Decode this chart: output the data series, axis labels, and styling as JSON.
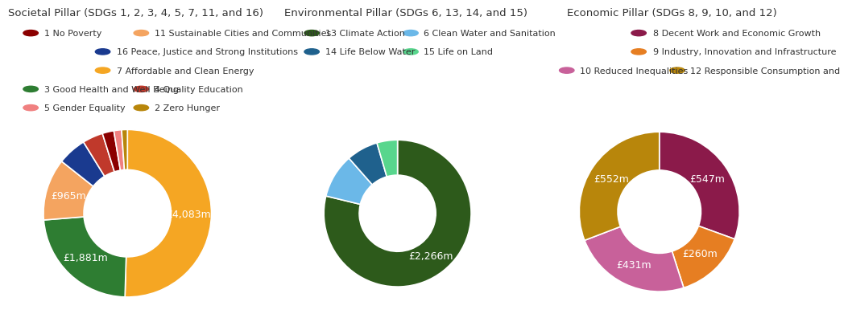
{
  "societal": {
    "title": "Societal Pillar (SDGs 1, 2, 3, 4, 5, 7, 11, and 16)",
    "values": [
      4083,
      1881,
      965,
      450,
      320,
      180,
      120,
      90
    ],
    "colors": [
      "#F5A623",
      "#2E7D32",
      "#F4A460",
      "#1A3A8F",
      "#C0392B",
      "#8B0000",
      "#F08080",
      "#B8860B"
    ],
    "annot_indices": [
      0,
      1,
      2
    ],
    "annot_labels": [
      "£4,083m",
      "£1,881m",
      "£965m"
    ]
  },
  "environmental": {
    "title": "Environmental Pillar (SDGs 6, 13, 14, and 15)",
    "values": [
      2266,
      280,
      200,
      130
    ],
    "colors": [
      "#2D5A1B",
      "#6BB8E8",
      "#1F618D",
      "#58D68D"
    ],
    "annot_indices": [
      0
    ],
    "annot_labels": [
      "£2,266m"
    ]
  },
  "economic": {
    "title": "Economic Pillar (SDGs 8, 9, 10, and 12)",
    "values": [
      547,
      260,
      431,
      552
    ],
    "colors": [
      "#8B1A4A",
      "#E67E22",
      "#C8619A",
      "#B8860B"
    ],
    "annot_indices": [
      0,
      1,
      2,
      3
    ],
    "annot_labels": [
      "£547m",
      "£260m",
      "£431m",
      "£552m"
    ]
  },
  "legend_societal": {
    "title": "Societal Pillar (SDGs 1, 2, 3, 4, 5, 7, 11, and 16)",
    "rows": [
      [
        {
          "label": "1 No Poverty",
          "color": "#8B0000"
        },
        {
          "label": "11 Sustainable Cities and Communities",
          "color": "#F4A460"
        }
      ],
      [
        {
          "label": "16 Peace, Justice and Strong Institutions",
          "color": "#1A3A8F"
        }
      ],
      [
        {
          "label": "7 Affordable and Clean Energy",
          "color": "#F5A623"
        }
      ],
      [
        {
          "label": "3 Good Health and Well Being",
          "color": "#2E7D32"
        },
        {
          "label": "4 Quality Education",
          "color": "#C0392B"
        }
      ],
      [
        {
          "label": "5 Gender Equality",
          "color": "#F08080"
        },
        {
          "label": "2 Zero Hunger",
          "color": "#B8860B"
        }
      ]
    ]
  },
  "legend_environmental": {
    "title": "Environmental Pillar (SDGs 6, 13, 14, and 15)",
    "rows": [
      [
        {
          "label": "13 Climate Action",
          "color": "#2D5A1B"
        },
        {
          "label": "6 Clean Water and Sanitation",
          "color": "#6BB8E8"
        }
      ],
      [
        {
          "label": "14 Life Below Water",
          "color": "#1F618D"
        },
        {
          "label": "15 Life on Land",
          "color": "#58D68D"
        }
      ]
    ]
  },
  "legend_economic": {
    "title": "Economic Pillar (SDGs 8, 9, 10, and 12)",
    "rows": [
      [
        {
          "label": "8 Decent Work and Economic Growth",
          "color": "#8B1A4A"
        }
      ],
      [
        {
          "label": "9 Industry, Innovation and Infrastructure",
          "color": "#E67E22"
        }
      ],
      [
        {
          "label": "10 Reduced Inequalities",
          "color": "#C8619A"
        },
        {
          "label": "12 Responsible Consumption and",
          "color": "#B8860B"
        }
      ]
    ]
  },
  "background_color": "#FFFFFF",
  "text_color": "#333333",
  "title_fontsize": 9.5,
  "legend_fontsize": 8.0,
  "annot_fontsize": 9.0
}
